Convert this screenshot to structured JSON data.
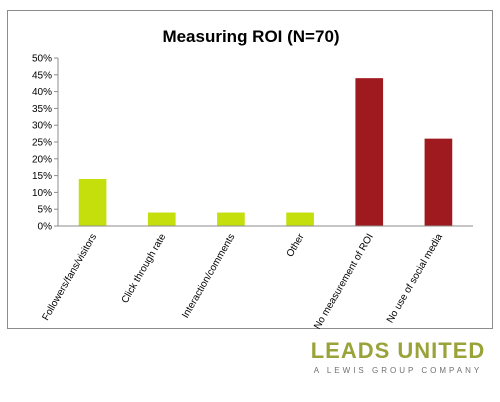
{
  "chart_data": {
    "type": "bar",
    "title": "Measuring ROI (N=70)",
    "categories": [
      "Followers/fans/visitors",
      "Click through rate",
      "Interaction/comments",
      "Other",
      "No measurement of ROI",
      "No use of social media"
    ],
    "values": [
      14,
      4,
      4,
      4,
      44,
      26
    ],
    "bar_colors": [
      "#c4df0b",
      "#c4df0b",
      "#c4df0b",
      "#c4df0b",
      "#9e1a1e",
      "#9e1a1e"
    ],
    "ylim": [
      0,
      50
    ],
    "yticks": [
      "0%",
      "5%",
      "10%",
      "15%",
      "20%",
      "25%",
      "30%",
      "35%",
      "40%",
      "45%",
      "50%"
    ],
    "grid": false,
    "legend": "none"
  },
  "logo": {
    "brand": "LEADS UNITED",
    "tagline": "A LEWIS GROUP COMPANY"
  }
}
